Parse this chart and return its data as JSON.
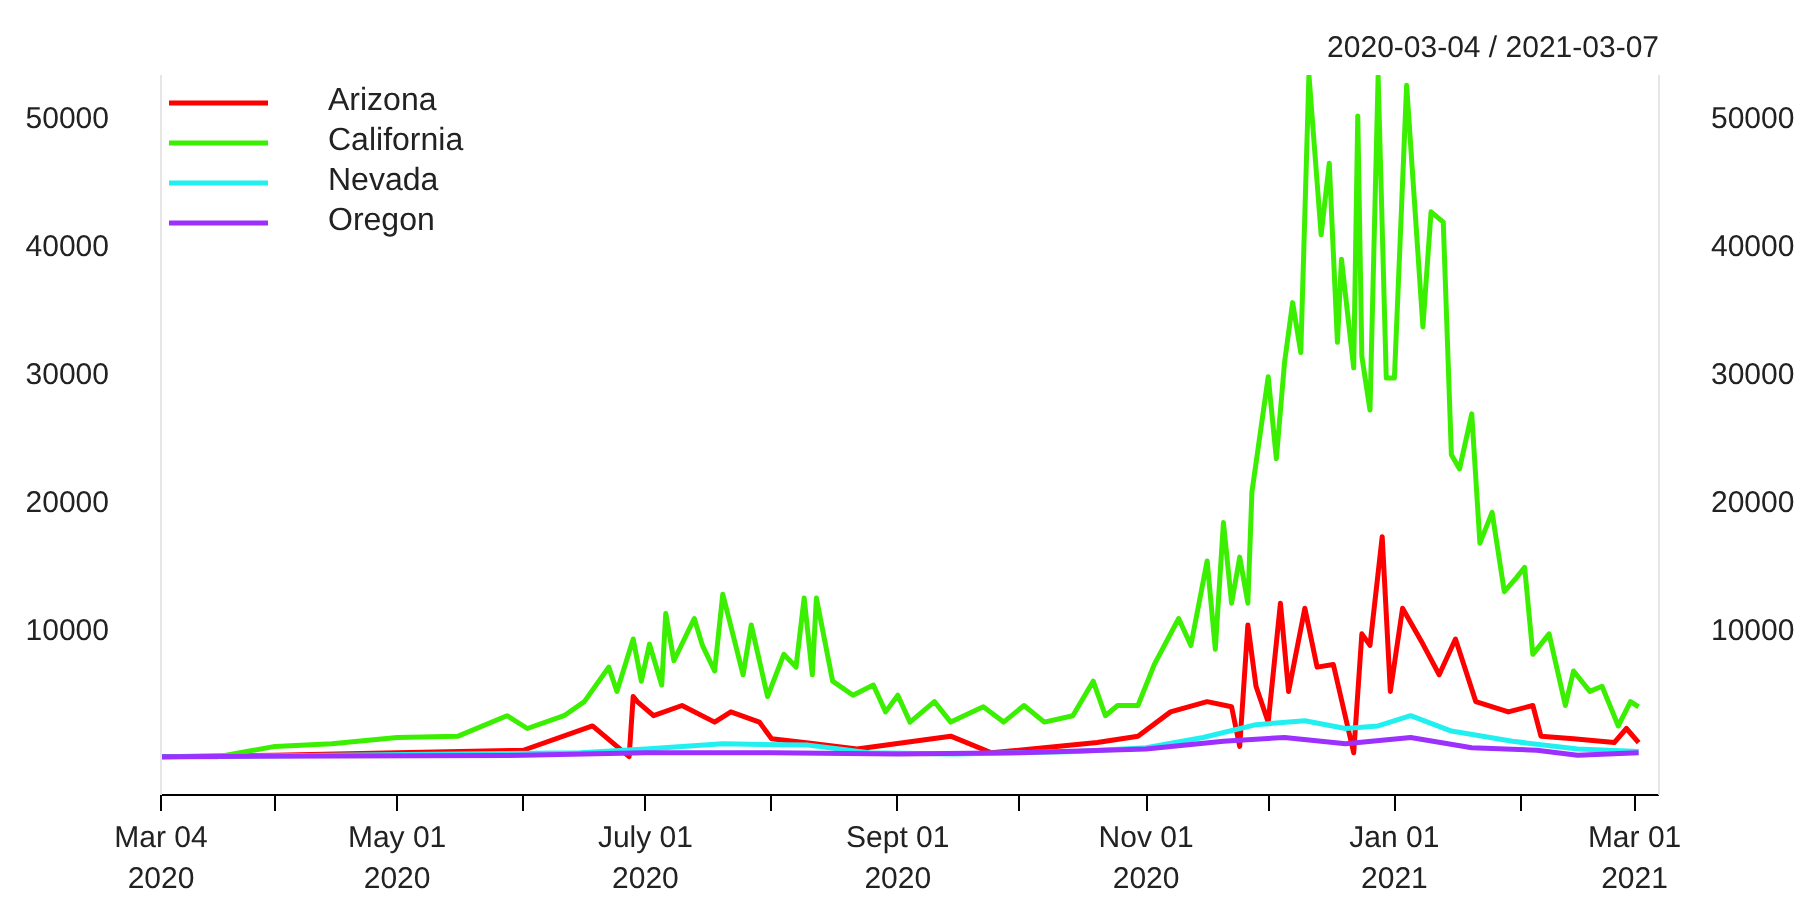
{
  "chart_data": {
    "type": "line",
    "title": "2020-03-04 / 2021-03-07",
    "xlim": [
      "2020-03-04",
      "2021-03-07"
    ],
    "xticks": [
      {
        "value": "2020-03-04",
        "label": "Mar 04\n2020"
      },
      {
        "value": "2020-04-01",
        "label": null
      },
      {
        "value": "2020-05-01",
        "label": "May 01\n2020"
      },
      {
        "value": "2020-06-01",
        "label": null
      },
      {
        "value": "2020-07-01",
        "label": "July 01\n2020"
      },
      {
        "value": "2020-08-01",
        "label": null
      },
      {
        "value": "2020-09-01",
        "label": "Sept 01\n2020"
      },
      {
        "value": "2020-10-01",
        "label": null
      },
      {
        "value": "2020-11-01",
        "label": "Nov 01\n2020"
      },
      {
        "value": "2020-12-01",
        "label": null
      },
      {
        "value": "2021-01-01",
        "label": "Jan 01\n2021"
      },
      {
        "value": "2021-02-01",
        "label": null
      },
      {
        "value": "2021-03-01",
        "label": "Mar 01\n2021"
      }
    ],
    "ylim": [
      -3000,
      53300
    ],
    "yticks": [
      10000,
      20000,
      30000,
      40000,
      50000
    ],
    "y2lim": [
      -3000,
      53300
    ],
    "y2ticks": [
      10000,
      20000,
      30000,
      40000,
      50000
    ],
    "grid": false,
    "legend": "top left",
    "marker": "none",
    "line_style": "solid",
    "series": [
      {
        "name": "Arizona",
        "color": "#ff0000",
        "x": [
          "2020-03-04",
          "2020-04-01",
          "2020-05-01",
          "2020-06-01",
          "2020-06-18",
          "2020-06-27",
          "2020-06-28",
          "2020-06-29",
          "2020-07-03",
          "2020-07-10",
          "2020-07-18",
          "2020-07-22",
          "2020-07-29",
          "2020-08-01",
          "2020-08-09",
          "2020-08-22",
          "2020-09-14",
          "2020-09-24",
          "2020-10-20",
          "2020-10-30",
          "2020-11-07",
          "2020-11-16",
          "2020-11-22",
          "2020-11-24",
          "2020-11-26",
          "2020-11-28",
          "2020-12-01",
          "2020-12-04",
          "2020-12-06",
          "2020-12-10",
          "2020-12-13",
          "2020-12-17",
          "2020-12-22",
          "2020-12-24",
          "2020-12-26",
          "2020-12-29",
          "2020-12-31",
          "2021-01-03",
          "2021-01-08",
          "2021-01-12",
          "2021-01-16",
          "2021-01-21",
          "2021-01-29",
          "2021-02-04",
          "2021-02-06",
          "2021-02-14",
          "2021-02-24",
          "2021-02-27",
          "2021-03-02"
        ],
        "values": [
          0,
          100,
          300,
          500,
          2400,
          0,
          4700,
          4300,
          3200,
          4000,
          2700,
          3500,
          2700,
          1400,
          1100,
          600,
          1600,
          300,
          1100,
          1600,
          3500,
          4300,
          3900,
          800,
          10300,
          5500,
          2700,
          12000,
          5100,
          11600,
          7000,
          7200,
          300,
          9600,
          8700,
          17200,
          5100,
          11600,
          8800,
          6400,
          9200,
          4300,
          3500,
          4000,
          1600,
          1400,
          1100,
          2200,
          1100
        ]
      },
      {
        "name": "California",
        "color": "#3bef00",
        "x": [
          "2020-03-04",
          "2020-03-18",
          "2020-04-01",
          "2020-04-15",
          "2020-05-01",
          "2020-05-16",
          "2020-05-28",
          "2020-06-02",
          "2020-06-11",
          "2020-06-16",
          "2020-06-22",
          "2020-06-24",
          "2020-06-28",
          "2020-06-30",
          "2020-07-02",
          "2020-07-05",
          "2020-07-06",
          "2020-07-08",
          "2020-07-13",
          "2020-07-15",
          "2020-07-18",
          "2020-07-20",
          "2020-07-25",
          "2020-07-27",
          "2020-07-31",
          "2020-08-04",
          "2020-08-07",
          "2020-08-09",
          "2020-08-11",
          "2020-08-12",
          "2020-08-16",
          "2020-08-21",
          "2020-08-26",
          "2020-08-29",
          "2020-09-01",
          "2020-09-04",
          "2020-09-10",
          "2020-09-14",
          "2020-09-22",
          "2020-09-27",
          "2020-10-02",
          "2020-10-07",
          "2020-10-14",
          "2020-10-19",
          "2020-10-22",
          "2020-10-25",
          "2020-10-30",
          "2020-11-03",
          "2020-11-09",
          "2020-11-12",
          "2020-11-16",
          "2020-11-18",
          "2020-11-20",
          "2020-11-22",
          "2020-11-24",
          "2020-11-26",
          "2020-11-27",
          "2020-12-01",
          "2020-12-03",
          "2020-12-05",
          "2020-12-07",
          "2020-12-09",
          "2020-12-11",
          "2020-12-14",
          "2020-12-16",
          "2020-12-18",
          "2020-12-19",
          "2020-12-22",
          "2020-12-23",
          "2020-12-24",
          "2020-12-26",
          "2020-12-28",
          "2020-12-30",
          "2021-01-01",
          "2021-01-04",
          "2021-01-08",
          "2021-01-10",
          "2021-01-13",
          "2021-01-15",
          "2021-01-17",
          "2021-01-20",
          "2021-01-22",
          "2021-01-25",
          "2021-01-28",
          "2021-01-31",
          "2021-02-02",
          "2021-02-04",
          "2021-02-08",
          "2021-02-12",
          "2021-02-14",
          "2021-02-18",
          "2021-02-21",
          "2021-02-25",
          "2021-02-28",
          "2021-03-02"
        ],
        "values": [
          0,
          0,
          800,
          1000,
          1500,
          1600,
          3200,
          2200,
          3200,
          4300,
          7000,
          5100,
          9200,
          5900,
          8800,
          5600,
          11200,
          7500,
          10800,
          8700,
          6700,
          12700,
          6400,
          10300,
          4700,
          8000,
          7000,
          12400,
          6400,
          12400,
          5900,
          4800,
          5600,
          3500,
          4800,
          2700,
          4300,
          2700,
          3900,
          2700,
          4000,
          2700,
          3200,
          5900,
          3200,
          4000,
          4000,
          7200,
          10800,
          8700,
          15300,
          8400,
          18300,
          12000,
          15600,
          12000,
          20700,
          29700,
          23300,
          30800,
          35500,
          31600,
          53300,
          40800,
          46400,
          32400,
          38900,
          30400,
          50100,
          31300,
          27100,
          53200,
          29600,
          29600,
          52500,
          33600,
          42600,
          41800,
          23600,
          22500,
          26800,
          16700,
          19100,
          12900,
          14000,
          14800,
          8000,
          9600,
          4000,
          6700,
          5100,
          5500,
          2400,
          4300,
          3900
        ]
      },
      {
        "name": "Nevada",
        "color": "#22f0f0",
        "x": [
          "2020-03-04",
          "2020-04-15",
          "2020-05-15",
          "2020-06-15",
          "2020-07-01",
          "2020-07-20",
          "2020-08-10",
          "2020-08-25",
          "2020-09-15",
          "2020-10-15",
          "2020-11-01",
          "2020-11-15",
          "2020-11-28",
          "2020-12-10",
          "2020-12-20",
          "2020-12-28",
          "2021-01-05",
          "2021-01-15",
          "2021-01-30",
          "2021-02-15",
          "2021-03-02"
        ],
        "values": [
          0,
          100,
          200,
          300,
          600,
          1000,
          900,
          300,
          200,
          400,
          700,
          1500,
          2500,
          2800,
          2200,
          2400,
          3200,
          2000,
          1200,
          600,
          400
        ]
      },
      {
        "name": "Oregon",
        "color": "#9b30ff",
        "x": [
          "2020-03-04",
          "2020-06-01",
          "2020-07-01",
          "2020-08-01",
          "2020-09-01",
          "2020-10-01",
          "2020-11-01",
          "2020-11-20",
          "2020-12-05",
          "2020-12-20",
          "2021-01-05",
          "2021-01-20",
          "2021-02-05",
          "2021-02-15",
          "2021-03-02"
        ],
        "values": [
          0,
          100,
          300,
          300,
          200,
          300,
          600,
          1200,
          1500,
          1000,
          1500,
          700,
          500,
          100,
          300
        ]
      }
    ]
  }
}
